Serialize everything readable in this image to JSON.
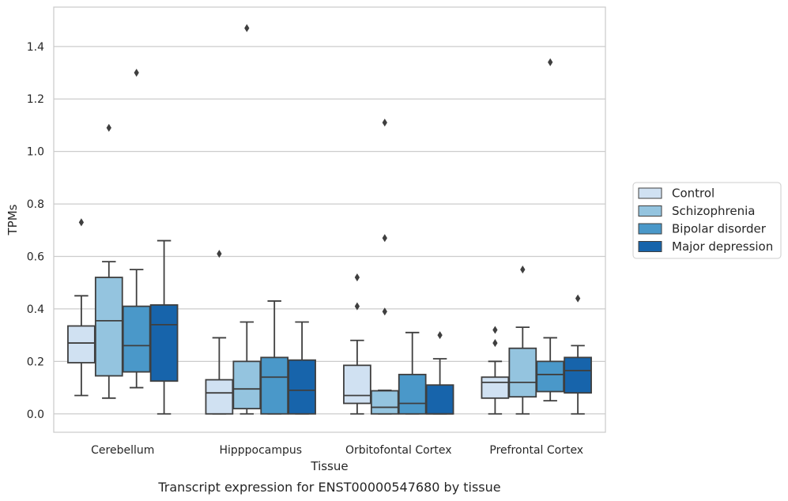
{
  "caption": "Transcript expression for ENST00000547680 by tissue",
  "chart_data": {
    "type": "box",
    "title": "",
    "xlabel": "Tissue",
    "ylabel": "TPMs",
    "ylim": [
      -0.07,
      1.55
    ],
    "yticks": [
      0.0,
      0.2,
      0.4,
      0.6,
      0.8,
      1.0,
      1.2,
      1.4
    ],
    "ytick_labels": [
      "0.0",
      "0.2",
      "0.4",
      "0.6",
      "0.8",
      "1.0",
      "1.2",
      "1.4"
    ],
    "grid": "horizontal",
    "legend_position": "right",
    "categories": [
      "Cerebellum",
      "Hipppocampus",
      "Orbitofontal Cortex",
      "Prefrontal Cortex"
    ],
    "series": [
      {
        "name": "Control",
        "color": "#d0e1f2",
        "boxes": [
          {
            "whislo": 0.07,
            "q1": 0.195,
            "med": 0.27,
            "q3": 0.335,
            "whishi": 0.45,
            "fliers": [
              0.73
            ]
          },
          {
            "whislo": 0.0,
            "q1": 0.0,
            "med": 0.08,
            "q3": 0.13,
            "whishi": 0.29,
            "fliers": [
              0.61
            ]
          },
          {
            "whislo": 0.0,
            "q1": 0.04,
            "med": 0.07,
            "q3": 0.185,
            "whishi": 0.28,
            "fliers": [
              0.41,
              0.52
            ]
          },
          {
            "whislo": 0.0,
            "q1": 0.06,
            "med": 0.12,
            "q3": 0.14,
            "whishi": 0.2,
            "fliers": [
              0.27,
              0.32
            ]
          }
        ]
      },
      {
        "name": "Schizophrenia",
        "color": "#94c4df",
        "boxes": [
          {
            "whislo": 0.06,
            "q1": 0.145,
            "med": 0.355,
            "q3": 0.52,
            "whishi": 0.58,
            "fliers": [
              1.09
            ]
          },
          {
            "whislo": 0.0,
            "q1": 0.02,
            "med": 0.095,
            "q3": 0.2,
            "whishi": 0.35,
            "fliers": [
              1.47
            ]
          },
          {
            "whislo": 0.0,
            "q1": 0.0,
            "med": 0.025,
            "q3": 0.088,
            "whishi": 0.09,
            "fliers": [
              0.39,
              0.67,
              1.11
            ]
          },
          {
            "whislo": 0.0,
            "q1": 0.065,
            "med": 0.12,
            "q3": 0.25,
            "whishi": 0.33,
            "fliers": [
              0.55
            ]
          }
        ]
      },
      {
        "name": "Bipolar disorder",
        "color": "#4a98c9",
        "boxes": [
          {
            "whislo": 0.1,
            "q1": 0.16,
            "med": 0.26,
            "q3": 0.41,
            "whishi": 0.55,
            "fliers": [
              1.3
            ]
          },
          {
            "whislo": 0.0,
            "q1": 0.0,
            "med": 0.14,
            "q3": 0.215,
            "whishi": 0.43,
            "fliers": []
          },
          {
            "whislo": 0.0,
            "q1": 0.0,
            "med": 0.04,
            "q3": 0.15,
            "whishi": 0.31,
            "fliers": []
          },
          {
            "whislo": 0.05,
            "q1": 0.085,
            "med": 0.15,
            "q3": 0.2,
            "whishi": 0.29,
            "fliers": [
              1.34
            ]
          }
        ]
      },
      {
        "name": "Major depression",
        "color": "#1764ab",
        "boxes": [
          {
            "whislo": 0.0,
            "q1": 0.125,
            "med": 0.34,
            "q3": 0.415,
            "whishi": 0.66,
            "fliers": []
          },
          {
            "whislo": 0.0,
            "q1": 0.0,
            "med": 0.09,
            "q3": 0.205,
            "whishi": 0.35,
            "fliers": []
          },
          {
            "whislo": 0.0,
            "q1": 0.0,
            "med": 0.0,
            "q3": 0.11,
            "whishi": 0.21,
            "fliers": [
              0.3
            ]
          },
          {
            "whislo": 0.0,
            "q1": 0.08,
            "med": 0.165,
            "q3": 0.215,
            "whishi": 0.26,
            "fliers": [
              0.44
            ]
          }
        ]
      }
    ]
  }
}
